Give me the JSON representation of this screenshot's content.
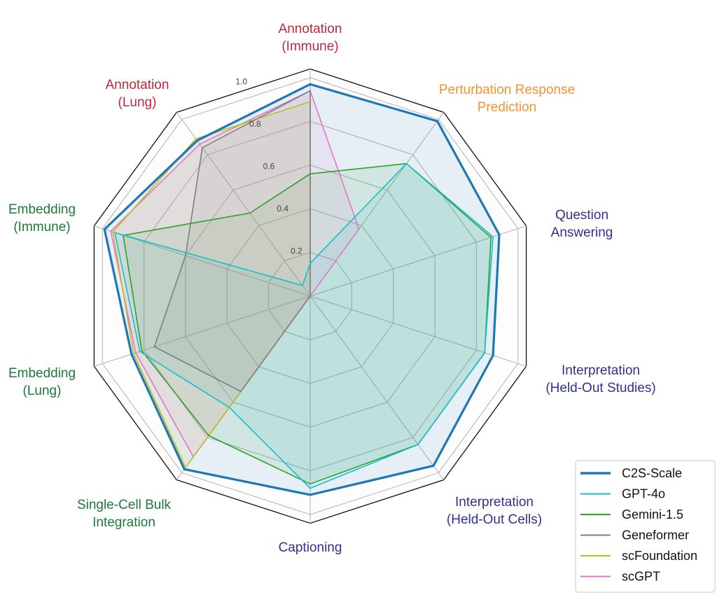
{
  "chart_data": {
    "type": "radar",
    "title": "",
    "rlim": [
      0,
      1.0
    ],
    "r_ticks": [
      "0.2",
      "0.4",
      "0.6",
      "0.8",
      "1.0"
    ],
    "r_tick_values": [
      0.2,
      0.4,
      0.6,
      0.8,
      1.0
    ],
    "legend_position": "bottom-right",
    "axes": [
      {
        "lines": [
          "Annotation",
          "(Immune)"
        ],
        "color": "#c0283c"
      },
      {
        "lines": [
          "Perturbation Response",
          "Prediction"
        ],
        "color": "#f7922f"
      },
      {
        "lines": [
          "Question",
          "Answering"
        ],
        "color": "#2e3192"
      },
      {
        "lines": [
          "Interpretation",
          "(Held-Out Studies)"
        ],
        "color": "#2e3192"
      },
      {
        "lines": [
          "Interpretation",
          "(Held-Out Cells)"
        ],
        "color": "#2e3192"
      },
      {
        "lines": [
          "Captioning"
        ],
        "color": "#2e3192"
      },
      {
        "lines": [
          "Single-Cell Bulk",
          "Integration"
        ],
        "color": "#1a7a3c"
      },
      {
        "lines": [
          "Embedding",
          "(Lung)"
        ],
        "color": "#1a7a3c"
      },
      {
        "lines": [
          "Embedding",
          "(Immune)"
        ],
        "color": "#1a7a3c"
      },
      {
        "lines": [
          "Annotation",
          "(Lung)"
        ],
        "color": "#c0283c"
      }
    ],
    "series": [
      {
        "name": "C2S-Scale",
        "color": "#1f77b4",
        "values": [
          0.97,
          0.99,
          0.91,
          0.88,
          0.96,
          0.91,
          0.98,
          0.86,
          0.99,
          0.88
        ]
      },
      {
        "name": "GPT-4o",
        "color": "#17becf",
        "values": [
          0.15,
          0.75,
          0.88,
          0.84,
          0.84,
          0.88,
          0.63,
          0.82,
          0.94,
          0.06
        ]
      },
      {
        "name": "Gemini-1.5",
        "color": "#2ca02c",
        "values": [
          0.56,
          0.75,
          0.87,
          0.84,
          0.84,
          0.86,
          0.79,
          0.81,
          0.9,
          0.47
        ]
      },
      {
        "name": "Geneformer",
        "color": "#7f7f7f",
        "values": [
          0.94,
          0,
          0,
          0,
          0,
          0,
          0.54,
          0.75,
          0.6,
          0.84
        ]
      },
      {
        "name": "scFoundation",
        "color": "#bcbd22",
        "values": [
          0.89,
          0,
          0,
          0,
          0,
          0,
          0.97,
          0.85,
          0.95,
          0.89
        ]
      },
      {
        "name": "scGPT",
        "color": "#e377c2",
        "values": [
          0.94,
          0.38,
          0,
          0,
          0,
          0,
          0.91,
          0.84,
          0.96,
          0.86
        ]
      }
    ]
  }
}
